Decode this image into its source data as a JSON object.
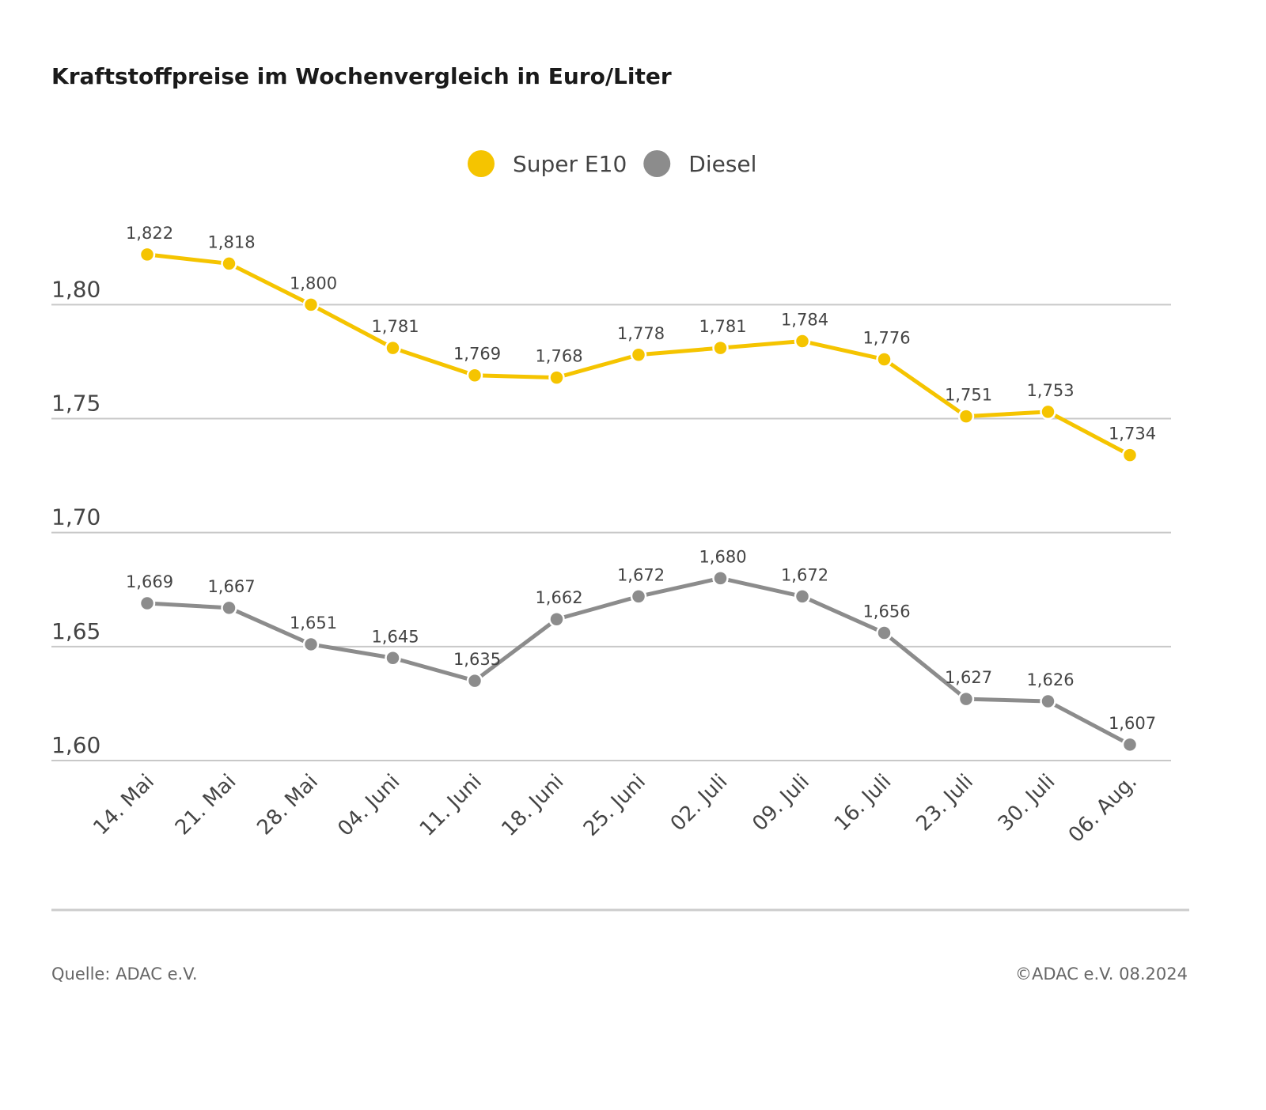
{
  "chart_data": {
    "type": "line",
    "title": "Kraftstoffpreise im Wochenvergleich in Euro/Liter",
    "categories": [
      "14. Mai",
      "21. Mai",
      "28. Mai",
      "04. Juni",
      "11. Juni",
      "18. Juni",
      "25. Juni",
      "02. Juli",
      "09. Juli",
      "16. Juli",
      "23. Juli",
      "30. Juli",
      "06. Aug."
    ],
    "series": [
      {
        "name": "Super E10",
        "color": "#f5c400",
        "values": [
          1.822,
          1.818,
          1.8,
          1.781,
          1.769,
          1.768,
          1.778,
          1.781,
          1.784,
          1.776,
          1.751,
          1.753,
          1.734
        ],
        "value_labels": [
          "1,822",
          "1,818",
          "1,800",
          "1,781",
          "1,769",
          "1,768",
          "1,778",
          "1,781",
          "1,784",
          "1,776",
          "1,751",
          "1,753",
          "1,734"
        ]
      },
      {
        "name": "Diesel",
        "color": "#8c8c8c",
        "values": [
          1.669,
          1.667,
          1.651,
          1.645,
          1.635,
          1.662,
          1.672,
          1.68,
          1.672,
          1.656,
          1.627,
          1.626,
          1.607
        ],
        "value_labels": [
          "1,669",
          "1,667",
          "1,651",
          "1,645",
          "1,635",
          "1,662",
          "1,672",
          "1,680",
          "1,672",
          "1,656",
          "1,627",
          "1,626",
          "1,607"
        ]
      }
    ],
    "ylim": [
      1.6,
      1.84
    ],
    "yticks": [
      {
        "value": 1.6,
        "label": "1,60"
      },
      {
        "value": 1.65,
        "label": "1,65"
      },
      {
        "value": 1.7,
        "label": "1,70"
      },
      {
        "value": 1.75,
        "label": "1,75"
      },
      {
        "value": 1.8,
        "label": "1,80"
      }
    ],
    "grid": true,
    "legend": "top",
    "source": "Quelle: ADAC e.V.",
    "credit": "©ADAC e.V. 08.2024"
  }
}
